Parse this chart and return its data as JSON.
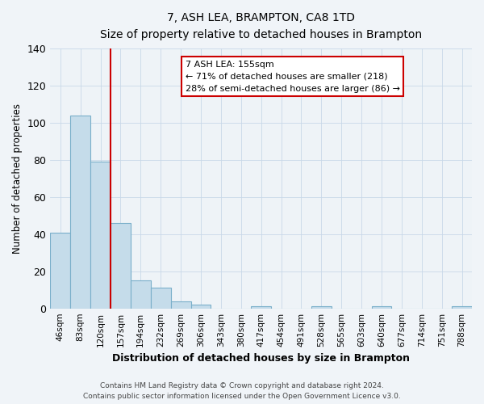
{
  "title": "7, ASH LEA, BRAMPTON, CA8 1TD",
  "subtitle": "Size of property relative to detached houses in Brampton",
  "xlabel": "Distribution of detached houses by size in Brampton",
  "ylabel": "Number of detached properties",
  "bar_labels": [
    "46sqm",
    "83sqm",
    "120sqm",
    "157sqm",
    "194sqm",
    "232sqm",
    "269sqm",
    "306sqm",
    "343sqm",
    "380sqm",
    "417sqm",
    "454sqm",
    "491sqm",
    "528sqm",
    "565sqm",
    "603sqm",
    "640sqm",
    "677sqm",
    "714sqm",
    "751sqm",
    "788sqm"
  ],
  "bar_values": [
    41,
    104,
    79,
    46,
    15,
    11,
    4,
    2,
    0,
    0,
    1,
    0,
    0,
    1,
    0,
    0,
    1,
    0,
    0,
    0,
    1
  ],
  "bar_color": "#c5dcea",
  "bar_edge_color": "#7aafca",
  "vline_x": 2.5,
  "vline_color": "#cc0000",
  "ylim": [
    0,
    140
  ],
  "yticks": [
    0,
    20,
    40,
    60,
    80,
    100,
    120,
    140
  ],
  "ann_line1": "7 ASH LEA: 155sqm",
  "ann_line2": "← 71% of detached houses are smaller (218)",
  "ann_line3": "28% of semi-detached houses are larger (86) →",
  "annotation_box_color": "#cc0000",
  "annotation_box_face": "#ffffff",
  "footer_line1": "Contains HM Land Registry data © Crown copyright and database right 2024.",
  "footer_line2": "Contains public sector information licensed under the Open Government Licence v3.0.",
  "background_color": "#f0f4f8",
  "plot_bg_color": "#eef3f7",
  "grid_color": "#c8d8e8",
  "title_fontsize": 11,
  "subtitle_fontsize": 9
}
